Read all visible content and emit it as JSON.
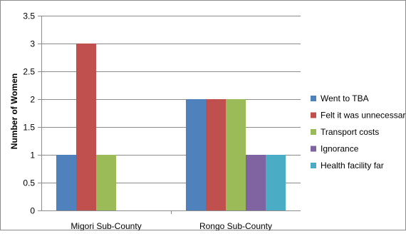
{
  "chart_data": {
    "type": "bar",
    "title": "",
    "xlabel": "",
    "ylabel": "Number of Women",
    "ylim": [
      0,
      3.5
    ],
    "yticks": [
      0,
      0.5,
      1,
      1.5,
      2,
      2.5,
      3,
      3.5
    ],
    "ytick_labels": [
      "0",
      "0.5",
      "1",
      "1.5",
      "2",
      "2.5",
      "3",
      "3.5"
    ],
    "grid": true,
    "legend_position": "right",
    "categories": [
      "Migori Sub-County",
      "Rongo Sub-County"
    ],
    "series": [
      {
        "name": "Went to TBA",
        "color": "#4F81BD",
        "values": [
          1,
          2
        ]
      },
      {
        "name": "Felt it was unnecessar",
        "color": "#C0504D",
        "values": [
          3,
          2
        ]
      },
      {
        "name": "Transport costs",
        "color": "#9BBB59",
        "values": [
          1,
          2
        ]
      },
      {
        "name": "Ignorance",
        "color": "#8064A2",
        "values": [
          0,
          1
        ]
      },
      {
        "name": "Health facility far",
        "color": "#4BACC6",
        "values": [
          0,
          1
        ]
      }
    ]
  }
}
